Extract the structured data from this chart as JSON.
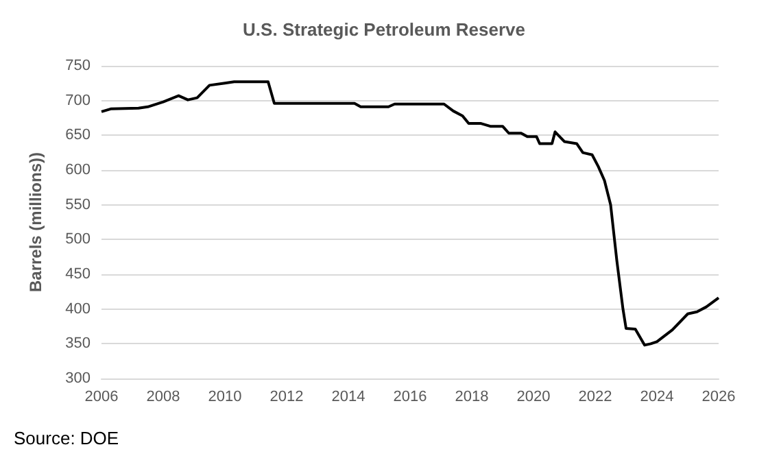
{
  "chart_data": {
    "type": "line",
    "title": "U.S. Strategic Petroleum Reserve",
    "ylabel": "Barrels (millions))",
    "annotations": [
      "Source: DOE"
    ],
    "x": [
      2006,
      2006.3,
      2007.2,
      2007.5,
      2008,
      2008.5,
      2008.8,
      2009.1,
      2009.5,
      2010,
      2010.3,
      2011.4,
      2011.6,
      2014.2,
      2014.4,
      2015.3,
      2015.5,
      2017.1,
      2017.4,
      2017.7,
      2017.9,
      2018.3,
      2018.6,
      2019,
      2019.2,
      2019.6,
      2019.8,
      2020.1,
      2020.2,
      2020.6,
      2020.7,
      2021,
      2021.4,
      2021.6,
      2021.9,
      2022.1,
      2022.3,
      2022.5,
      2022.7,
      2022.9,
      2023,
      2023.3,
      2023.6,
      2023.8,
      2024,
      2024.5,
      2025,
      2025.3,
      2025.6,
      2026
    ],
    "series": [
      {
        "color": "#000000",
        "values": [
          684,
          688,
          689,
          691,
          698,
          707,
          701,
          704,
          722,
          725,
          727,
          727,
          696,
          696,
          691,
          691,
          695,
          695,
          685,
          678,
          667,
          667,
          663,
          663,
          653,
          653,
          648,
          648,
          638,
          638,
          655,
          641,
          638,
          625,
          622,
          605,
          585,
          550,
          470,
          400,
          372,
          371,
          348,
          350,
          353,
          370,
          393,
          396,
          403,
          416
        ]
      }
    ],
    "xlim": [
      2006,
      2026
    ],
    "xticks": [
      2006,
      2008,
      2010,
      2012,
      2014,
      2016,
      2018,
      2020,
      2022,
      2024,
      2026
    ],
    "ylim": [
      300,
      750
    ],
    "yticks": [
      300,
      350,
      400,
      450,
      500,
      550,
      600,
      650,
      700,
      750
    ],
    "grid": "y",
    "marker": "none",
    "line_style": "solid"
  }
}
